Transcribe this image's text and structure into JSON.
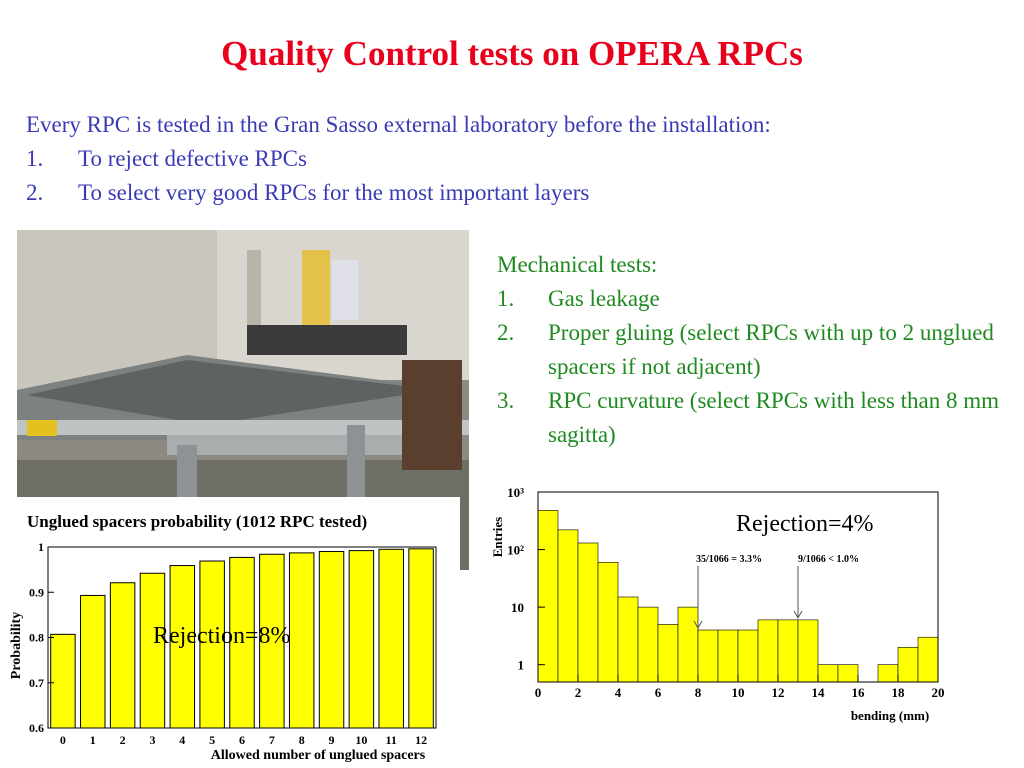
{
  "slide": {
    "title": "Quality Control tests on OPERA RPCs",
    "intro": "Every RPC is tested in the Gran Sasso external laboratory before the installation:",
    "intro_items": [
      {
        "num": "1.",
        "text": "To reject defective RPCs"
      },
      {
        "num": "2.",
        "text": "To select very good RPCs for the most important layers"
      }
    ],
    "mech_heading": "Mechanical tests:",
    "mech_items": [
      {
        "num": "1.",
        "text": "Gas leakage"
      },
      {
        "num": "2.",
        "text": "Proper gluing (select RPCs with up to 2 unglued spacers if not adjacent)"
      },
      {
        "num": "3.",
        "text": "RPC curvature (select RPCs with less than 8 mm sagitta)"
      }
    ],
    "rejection_left": "Rejection=8%",
    "rejection_right": "Rejection=4%",
    "colors": {
      "title": "#e8001c",
      "intro": "#3a3ab5",
      "mech": "#1f8a1f",
      "bar_fill": "#ffff00"
    }
  },
  "chart_data": [
    {
      "type": "bar",
      "title": "Unglued spacers probability (1012 RPC tested)",
      "xlabel": "Allowed number of unglued spacers",
      "ylabel": "Probability",
      "categories": [
        "0",
        "1",
        "2",
        "3",
        "4",
        "5",
        "6",
        "7",
        "8",
        "9",
        "10",
        "11",
        "12"
      ],
      "values": [
        0.807,
        0.893,
        0.921,
        0.942,
        0.959,
        0.969,
        0.977,
        0.984,
        0.987,
        0.99,
        0.992,
        0.995,
        0.996
      ],
      "ylim": [
        0.6,
        1.0
      ],
      "yticks": [
        "0.6",
        "0.7",
        "0.8",
        "0.9",
        "1"
      ],
      "grid": false
    },
    {
      "type": "bar",
      "xlabel": "bending (mm)",
      "ylabel": "Entries",
      "scale": "log",
      "x_ticks": [
        "0",
        "2",
        "4",
        "6",
        "8",
        "10",
        "12",
        "14",
        "16",
        "18",
        "20"
      ],
      "y_ticks": [
        "1",
        "10",
        "10²",
        "10³"
      ],
      "xlim": [
        0,
        20
      ],
      "ylim": [
        0.5,
        1000
      ],
      "bin_width": 1,
      "values": [
        480,
        220,
        130,
        60,
        15,
        10,
        5,
        10,
        4,
        4,
        4,
        6,
        6,
        6,
        1,
        1,
        0,
        1,
        2,
        3
      ],
      "annotations": [
        {
          "text": "35/1066 = 3.3%",
          "x": 8
        },
        {
          "text": "9/1066 < 1.0%",
          "x": 13
        }
      ],
      "grid": false
    }
  ]
}
